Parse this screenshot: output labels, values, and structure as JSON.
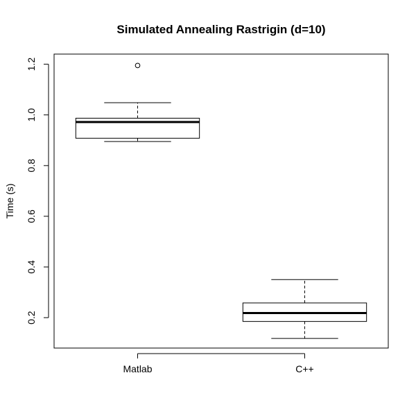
{
  "chart_data": {
    "type": "boxplot",
    "title": "Simulated Annealing Rastrigin (d=10)",
    "xlabel": "",
    "ylabel": "Time (s)",
    "ylim": [
      0.08,
      1.24
    ],
    "yticks": [
      0.2,
      0.4,
      0.6,
      0.8,
      1.0,
      1.2
    ],
    "ytick_labels": [
      "0.2",
      "0.4",
      "0.6",
      "0.8",
      "1.0",
      "1.2"
    ],
    "categories": [
      "Matlab",
      "C++"
    ],
    "boxes": [
      {
        "category": "Matlab",
        "whisker_low": 0.895,
        "q1": 0.908,
        "median": 0.972,
        "q3": 0.987,
        "whisker_high": 1.048,
        "outliers": [
          1.195
        ]
      },
      {
        "category": "C++",
        "whisker_low": 0.118,
        "q1": 0.185,
        "median": 0.218,
        "q3": 0.258,
        "whisker_high": 0.35,
        "outliers": []
      }
    ],
    "grid": false,
    "legend": "none"
  }
}
